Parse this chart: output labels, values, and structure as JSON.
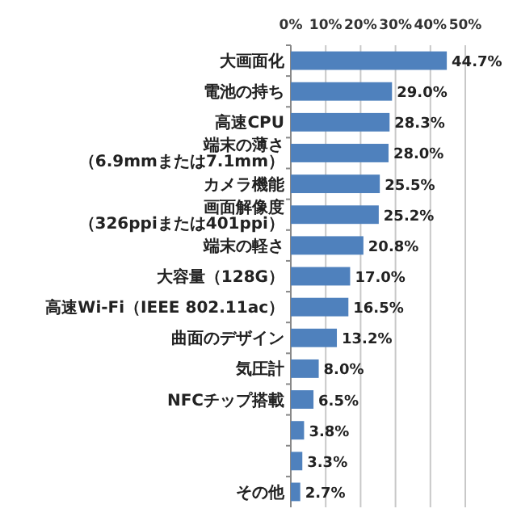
{
  "chart_data": {
    "type": "bar",
    "orientation": "horizontal",
    "categories": [
      "大画面化",
      "電池の持ち",
      "高速CPU",
      "端末の薄さ（6.9mmまたは7.1mm）",
      "カメラ機能",
      "画面解像度（326ppiまたは401ppi）",
      "端末の軽さ",
      "大容量（128G）",
      "高速Wi-Fi（IEEE 802.11ac）",
      "曲面のデザイン",
      "気圧計",
      "NFCチップ搭載",
      null,
      null,
      "その他"
    ],
    "values": [
      44.7,
      29.0,
      28.3,
      28.0,
      25.5,
      25.2,
      20.8,
      17.0,
      16.5,
      13.2,
      8.0,
      6.5,
      3.8,
      3.3,
      2.7
    ],
    "value_labels": [
      "44.7%",
      "29.0%",
      "28.3%",
      "28.0%",
      "25.5%",
      "25.2%",
      "20.8%",
      "17.0%",
      "16.5%",
      "13.2%",
      "8.0%",
      "6.5%",
      "3.8%",
      "3.3%",
      "2.7%"
    ],
    "color": "#4f81bd",
    "xlim": [
      0,
      50
    ],
    "xticks": [
      {
        "value": 0,
        "label": "0%"
      },
      {
        "value": 10,
        "label": "10%"
      },
      {
        "value": 20,
        "label": "20%"
      },
      {
        "value": 30,
        "label": "30%"
      },
      {
        "value": 40,
        "label": "40%"
      },
      {
        "value": 50,
        "label": "50%"
      }
    ],
    "grid": "x"
  }
}
